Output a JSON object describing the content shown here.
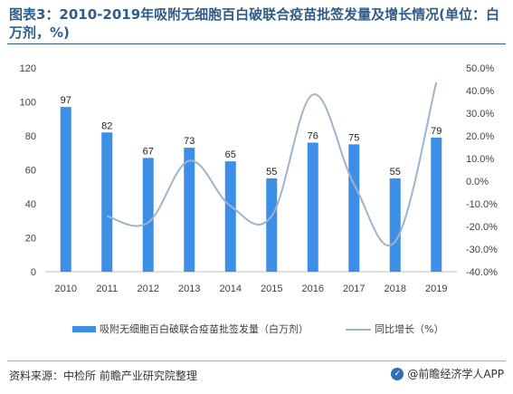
{
  "title": "图表3：2010-2019年吸附无细胞百白破联合疫苗批签发量及增长情况(单位：白万剂，%)",
  "source": "资料来源：中检所 前瞻产业研究院整理",
  "brand": "@前瞻经济学人APP",
  "chart_data": {
    "type": "bar",
    "categories": [
      "2010",
      "2011",
      "2012",
      "2013",
      "2014",
      "2015",
      "2016",
      "2017",
      "2018",
      "2019"
    ],
    "series": [
      {
        "name": "吸附无细胞百白破联合疫苗批签发量（白万剂）",
        "type": "bar",
        "axis": "left",
        "color": "#3d8ee6",
        "values": [
          97,
          82,
          67,
          73,
          65,
          55,
          76,
          75,
          55,
          79
        ],
        "labels": [
          "97",
          "82",
          "67",
          "73",
          "65",
          "55",
          "76",
          "75",
          "55",
          "79"
        ]
      },
      {
        "name": "同比增长（%）",
        "type": "line",
        "axis": "right",
        "color": "#9fb4cc",
        "values": [
          null,
          -15.5,
          -18.3,
          9.0,
          -11.0,
          -15.4,
          38.2,
          -1.3,
          -26.7,
          43.6
        ]
      }
    ],
    "y_left": {
      "min": 0,
      "max": 120,
      "ticks": [
        "0",
        "20",
        "40",
        "60",
        "80",
        "100",
        "120"
      ],
      "values": [
        0,
        20,
        40,
        60,
        80,
        100,
        120
      ]
    },
    "y_right": {
      "min": -40,
      "max": 50,
      "ticks": [
        "-40.0%",
        "-30.0%",
        "-20.0%",
        "-10.0%",
        "0.0%",
        "10.0%",
        "20.0%",
        "30.0%",
        "40.0%",
        "50.0%"
      ],
      "values": [
        -40,
        -30,
        -20,
        -10,
        0,
        10,
        20,
        30,
        40,
        50
      ]
    },
    "legend_position": "bottom",
    "grid": false
  }
}
